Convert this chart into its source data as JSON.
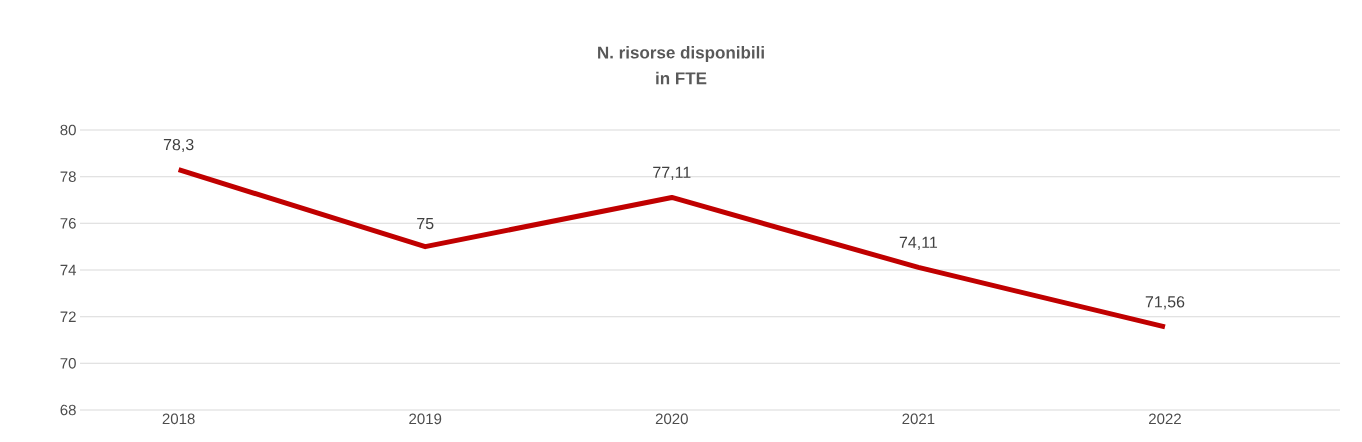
{
  "chart_data": {
    "type": "line",
    "title": "N. risorse disponibili",
    "subtitle": "in FTE",
    "categories": [
      "2018",
      "2019",
      "2020",
      "2021",
      "2022"
    ],
    "values": [
      78.3,
      75,
      77.11,
      74.11,
      71.56
    ],
    "value_labels": [
      "78,3",
      "75",
      "77,11",
      "74,11",
      "71,56"
    ],
    "color": "#c00000",
    "ylim": [
      68,
      80
    ],
    "yticks": [
      68,
      70,
      72,
      74,
      76,
      78,
      80
    ],
    "grid": "y",
    "marker": "none",
    "line_style": "solid"
  }
}
